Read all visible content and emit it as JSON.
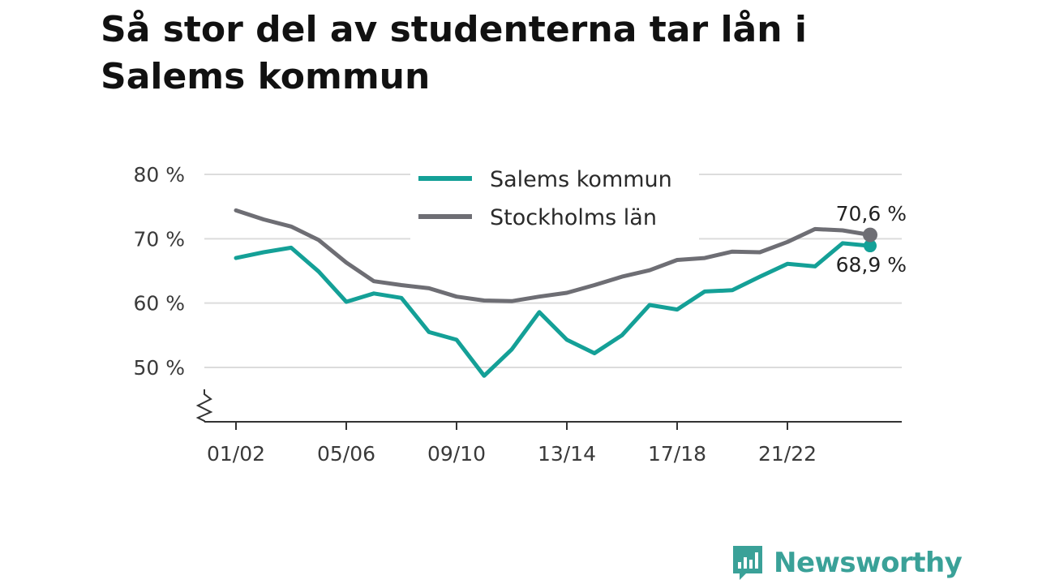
{
  "title": "Så stor del av studenterna tar lån i Salems kommun",
  "brand": {
    "name": "Newsworthy",
    "color": "#3aa198",
    "icon": "bar-chart-speech-bubble-icon"
  },
  "chart_data": {
    "type": "line",
    "title": "Så stor del av studenterna tar lån i Salems kommun",
    "xlabel": "",
    "ylabel": "",
    "ylim": [
      41,
      81
    ],
    "yticks": [
      50,
      60,
      70,
      80
    ],
    "ytick_labels": [
      "50 %",
      "60 %",
      "70 %",
      "80 %"
    ],
    "y_axis_break": true,
    "grid": "horizontal",
    "legend_placement": "top-center",
    "x": [
      "01/02",
      "02/03",
      "03/04",
      "04/05",
      "05/06",
      "06/07",
      "07/08",
      "08/09",
      "09/10",
      "10/11",
      "11/12",
      "12/13",
      "13/14",
      "14/15",
      "15/16",
      "16/17",
      "17/18",
      "18/19",
      "19/20",
      "20/21",
      "21/22",
      "22/23",
      "23/24",
      "24/25"
    ],
    "xticks": [
      "01/02",
      "05/06",
      "09/10",
      "13/14",
      "17/18",
      "21/22"
    ],
    "series": [
      {
        "name": "Salems kommun",
        "color": "#14a097",
        "values": [
          67.0,
          67.9,
          68.6,
          64.9,
          60.2,
          61.5,
          60.8,
          55.5,
          54.3,
          48.7,
          52.8,
          58.6,
          54.3,
          52.2,
          55.0,
          59.7,
          59.0,
          61.8,
          62.0,
          64.1,
          66.1,
          65.7,
          69.3,
          68.9
        ],
        "end_label": "68,9 %"
      },
      {
        "name": "Stockholms län",
        "color": "#6e6e74",
        "values": [
          74.4,
          73.0,
          71.9,
          69.8,
          66.3,
          63.4,
          62.8,
          62.3,
          61.0,
          60.4,
          60.3,
          61.0,
          61.6,
          62.8,
          64.1,
          65.1,
          66.7,
          67.0,
          68.0,
          67.9,
          69.5,
          71.5,
          71.3,
          70.6
        ],
        "end_label": "70,6 %"
      }
    ]
  }
}
